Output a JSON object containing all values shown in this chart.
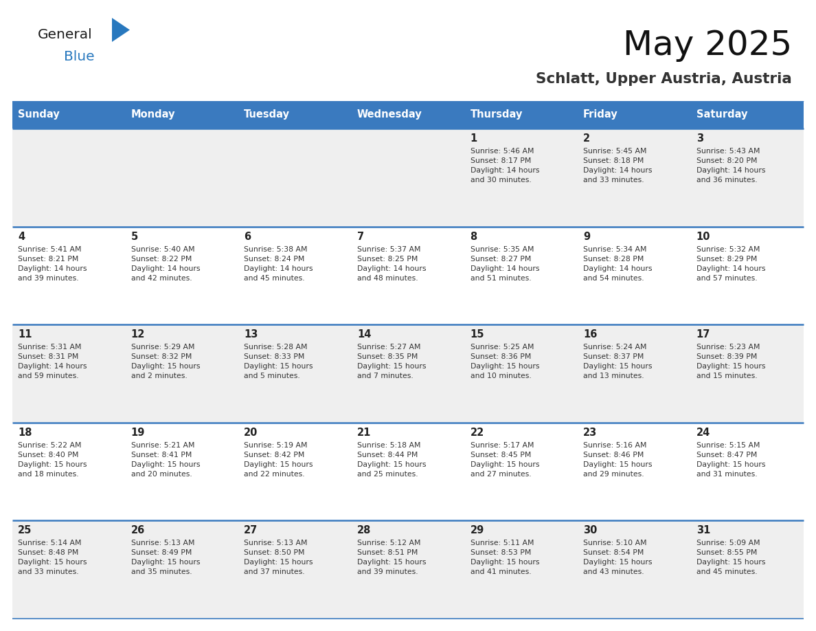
{
  "title": "May 2025",
  "subtitle": "Schlatt, Upper Austria, Austria",
  "header_bg": "#3a7abf",
  "header_text_color": "#ffffff",
  "day_names": [
    "Sunday",
    "Monday",
    "Tuesday",
    "Wednesday",
    "Thursday",
    "Friday",
    "Saturday"
  ],
  "row_bg_even": "#efefef",
  "row_bg_odd": "#ffffff",
  "cell_text_color": "#333333",
  "day_number_color": "#222222",
  "separator_color": "#3a7abf",
  "logo_color_general": "#1a1a1a",
  "logo_color_blue": "#2878be",
  "logo_triangle_color": "#2878be",
  "calendar_data": [
    [
      {
        "day": null,
        "text": ""
      },
      {
        "day": null,
        "text": ""
      },
      {
        "day": null,
        "text": ""
      },
      {
        "day": null,
        "text": ""
      },
      {
        "day": 1,
        "text": "Sunrise: 5:46 AM\nSunset: 8:17 PM\nDaylight: 14 hours\nand 30 minutes."
      },
      {
        "day": 2,
        "text": "Sunrise: 5:45 AM\nSunset: 8:18 PM\nDaylight: 14 hours\nand 33 minutes."
      },
      {
        "day": 3,
        "text": "Sunrise: 5:43 AM\nSunset: 8:20 PM\nDaylight: 14 hours\nand 36 minutes."
      }
    ],
    [
      {
        "day": 4,
        "text": "Sunrise: 5:41 AM\nSunset: 8:21 PM\nDaylight: 14 hours\nand 39 minutes."
      },
      {
        "day": 5,
        "text": "Sunrise: 5:40 AM\nSunset: 8:22 PM\nDaylight: 14 hours\nand 42 minutes."
      },
      {
        "day": 6,
        "text": "Sunrise: 5:38 AM\nSunset: 8:24 PM\nDaylight: 14 hours\nand 45 minutes."
      },
      {
        "day": 7,
        "text": "Sunrise: 5:37 AM\nSunset: 8:25 PM\nDaylight: 14 hours\nand 48 minutes."
      },
      {
        "day": 8,
        "text": "Sunrise: 5:35 AM\nSunset: 8:27 PM\nDaylight: 14 hours\nand 51 minutes."
      },
      {
        "day": 9,
        "text": "Sunrise: 5:34 AM\nSunset: 8:28 PM\nDaylight: 14 hours\nand 54 minutes."
      },
      {
        "day": 10,
        "text": "Sunrise: 5:32 AM\nSunset: 8:29 PM\nDaylight: 14 hours\nand 57 minutes."
      }
    ],
    [
      {
        "day": 11,
        "text": "Sunrise: 5:31 AM\nSunset: 8:31 PM\nDaylight: 14 hours\nand 59 minutes."
      },
      {
        "day": 12,
        "text": "Sunrise: 5:29 AM\nSunset: 8:32 PM\nDaylight: 15 hours\nand 2 minutes."
      },
      {
        "day": 13,
        "text": "Sunrise: 5:28 AM\nSunset: 8:33 PM\nDaylight: 15 hours\nand 5 minutes."
      },
      {
        "day": 14,
        "text": "Sunrise: 5:27 AM\nSunset: 8:35 PM\nDaylight: 15 hours\nand 7 minutes."
      },
      {
        "day": 15,
        "text": "Sunrise: 5:25 AM\nSunset: 8:36 PM\nDaylight: 15 hours\nand 10 minutes."
      },
      {
        "day": 16,
        "text": "Sunrise: 5:24 AM\nSunset: 8:37 PM\nDaylight: 15 hours\nand 13 minutes."
      },
      {
        "day": 17,
        "text": "Sunrise: 5:23 AM\nSunset: 8:39 PM\nDaylight: 15 hours\nand 15 minutes."
      }
    ],
    [
      {
        "day": 18,
        "text": "Sunrise: 5:22 AM\nSunset: 8:40 PM\nDaylight: 15 hours\nand 18 minutes."
      },
      {
        "day": 19,
        "text": "Sunrise: 5:21 AM\nSunset: 8:41 PM\nDaylight: 15 hours\nand 20 minutes."
      },
      {
        "day": 20,
        "text": "Sunrise: 5:19 AM\nSunset: 8:42 PM\nDaylight: 15 hours\nand 22 minutes."
      },
      {
        "day": 21,
        "text": "Sunrise: 5:18 AM\nSunset: 8:44 PM\nDaylight: 15 hours\nand 25 minutes."
      },
      {
        "day": 22,
        "text": "Sunrise: 5:17 AM\nSunset: 8:45 PM\nDaylight: 15 hours\nand 27 minutes."
      },
      {
        "day": 23,
        "text": "Sunrise: 5:16 AM\nSunset: 8:46 PM\nDaylight: 15 hours\nand 29 minutes."
      },
      {
        "day": 24,
        "text": "Sunrise: 5:15 AM\nSunset: 8:47 PM\nDaylight: 15 hours\nand 31 minutes."
      }
    ],
    [
      {
        "day": 25,
        "text": "Sunrise: 5:14 AM\nSunset: 8:48 PM\nDaylight: 15 hours\nand 33 minutes."
      },
      {
        "day": 26,
        "text": "Sunrise: 5:13 AM\nSunset: 8:49 PM\nDaylight: 15 hours\nand 35 minutes."
      },
      {
        "day": 27,
        "text": "Sunrise: 5:13 AM\nSunset: 8:50 PM\nDaylight: 15 hours\nand 37 minutes."
      },
      {
        "day": 28,
        "text": "Sunrise: 5:12 AM\nSunset: 8:51 PM\nDaylight: 15 hours\nand 39 minutes."
      },
      {
        "day": 29,
        "text": "Sunrise: 5:11 AM\nSunset: 8:53 PM\nDaylight: 15 hours\nand 41 minutes."
      },
      {
        "day": 30,
        "text": "Sunrise: 5:10 AM\nSunset: 8:54 PM\nDaylight: 15 hours\nand 43 minutes."
      },
      {
        "day": 31,
        "text": "Sunrise: 5:09 AM\nSunset: 8:55 PM\nDaylight: 15 hours\nand 45 minutes."
      }
    ]
  ]
}
